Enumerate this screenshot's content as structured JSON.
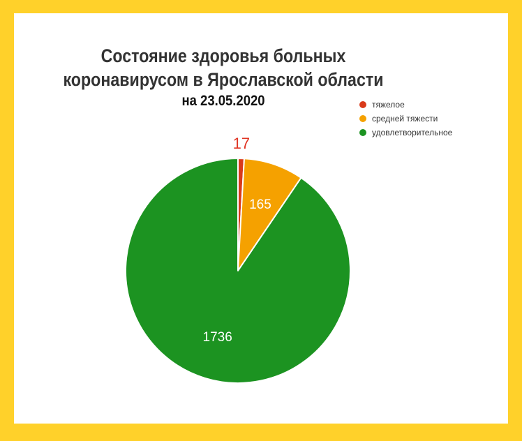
{
  "chart_data": {
    "type": "pie",
    "title_line1": "Состояние здоровья больных",
    "title_line2": "коронавирусом в Ярославской области",
    "subtitle": "на 23.05.2020",
    "legend_position": "top-right",
    "slices": [
      {
        "label": "тяжелое",
        "value": 17,
        "color": "#d93a1b",
        "text_color": "#e03524"
      },
      {
        "label": "средней тяжести",
        "value": 165,
        "color": "#f5a100",
        "text_color": "#ffffff"
      },
      {
        "label": "удовлетворительное",
        "value": 1736,
        "color": "#1c9321",
        "text_color": "#ffffff"
      }
    ]
  },
  "colors": {
    "frame": "#ffd12a",
    "background": "#ffffff"
  }
}
